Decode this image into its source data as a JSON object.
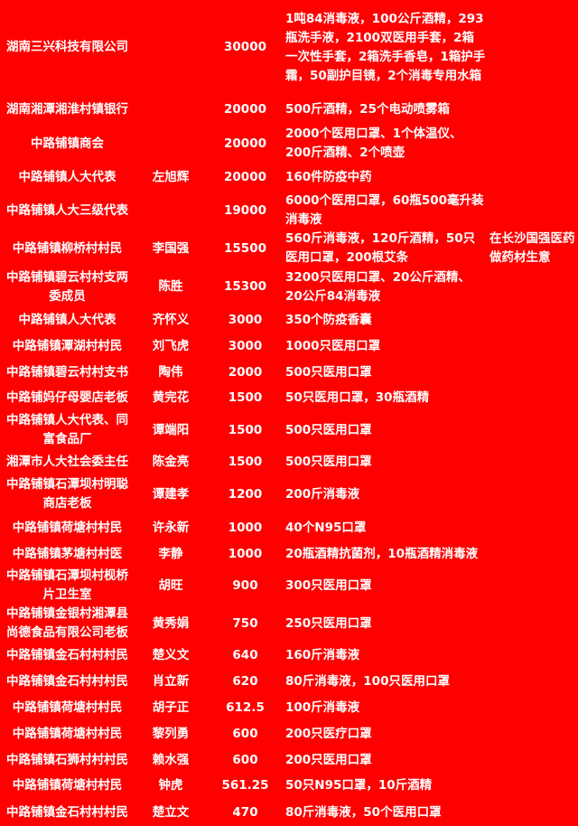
{
  "rows": [
    {
      "donor": "湖南三兴科技有限公司",
      "person": "",
      "amount": "30000",
      "items": "1吨84消毒液，100公斤酒精，293瓶洗手液，2100双医用手套，2箱一次性手套，2箱洗手香皂，1箱护手霜，50副护目镜，2个消毒专用水箱",
      "note": ""
    },
    {
      "donor": "湖南湘潭湘淮村镇银行",
      "person": "",
      "amount": "20000",
      "items": "500斤酒精，25个电动喷雾箱",
      "note": ""
    },
    {
      "donor": "中路铺镇商会",
      "person": "",
      "amount": "20000",
      "items": "2000个医用口罩、1个体温仪、200斤酒精、2个喷壶",
      "note": ""
    },
    {
      "donor": "中路铺镇人大代表",
      "person": "左旭辉",
      "amount": "20000",
      "items": "160件防疫中药",
      "note": ""
    },
    {
      "donor": "中路铺镇人大三级代表",
      "person": "",
      "amount": "19000",
      "items": "6000个医用口罩，60瓶500毫升装消毒液",
      "note": ""
    },
    {
      "donor": "中路铺镇柳桥村村民",
      "person": "李国强",
      "amount": "15500",
      "items": "560斤消毒液，120斤酒精，50只医用口罩，200根艾条",
      "note": "在长沙国强医药做药材生意"
    },
    {
      "donor": "中路铺镇碧云村村支两委成员",
      "person": "陈胜",
      "amount": "15300",
      "items": "3200只医用口罩、20公斤酒精、20公斤84消毒液",
      "note": ""
    },
    {
      "donor": "中路铺镇人大代表",
      "person": "齐怀义",
      "amount": "3000",
      "items": "350个防疫香囊",
      "note": ""
    },
    {
      "donor": "中路铺镇潭湖村村民",
      "person": "刘飞虎",
      "amount": "3000",
      "items": "1000只医用口罩",
      "note": ""
    },
    {
      "donor": "中路铺镇碧云村村支书",
      "person": "陶伟",
      "amount": "2000",
      "items": "500只医用口罩",
      "note": ""
    },
    {
      "donor": "中路铺妈仔母婴店老板",
      "person": "黄完花",
      "amount": "1500",
      "items": "50只医用口罩，30瓶酒精",
      "note": ""
    },
    {
      "donor": "中路铺镇人大代表、同富食品厂",
      "person": "谭端阳",
      "amount": "1500",
      "items": "500只医用口罩",
      "note": ""
    },
    {
      "donor": "湘潭市人大社会委主任",
      "person": "陈金亮",
      "amount": "1500",
      "items": "500只医用口罩",
      "note": ""
    },
    {
      "donor": "中路铺镇石潭坝村明聪商店老板",
      "person": "谭建孝",
      "amount": "1200",
      "items": "200斤消毒液",
      "note": ""
    },
    {
      "donor": "中路铺镇荷塘村村民",
      "person": "许永新",
      "amount": "1000",
      "items": "40个N95口罩",
      "note": ""
    },
    {
      "donor": "中路铺镇茅塘村村医",
      "person": "李静",
      "amount": "1000",
      "items": "20瓶酒精抗菌剂，10瓶酒精消毒液",
      "note": ""
    },
    {
      "donor": "中路铺镇石潭坝村枧桥片卫生室",
      "person": "胡旺",
      "amount": "900",
      "items": "300只医用口罩",
      "note": ""
    },
    {
      "donor": "中路铺镇金银村湘潭县尚德食品有限公司老板",
      "person": "黄秀娟",
      "amount": "750",
      "items": "250只医用口罩",
      "note": ""
    },
    {
      "donor": "中路铺镇金石村村村民",
      "person": "楚义文",
      "amount": "640",
      "items": "160斤消毒液",
      "note": ""
    },
    {
      "donor": "中路铺镇金石村村村民",
      "person": "肖立新",
      "amount": "620",
      "items": "80斤消毒液，100只医用口罩",
      "note": ""
    },
    {
      "donor": "中路铺镇荷塘村村民",
      "person": "胡子正",
      "amount": "612.5",
      "items": "100斤消毒液",
      "note": ""
    },
    {
      "donor": "中路铺镇荷塘村村民",
      "person": "黎列勇",
      "amount": "600",
      "items": "200只医疗口罩",
      "note": ""
    },
    {
      "donor": "中路铺镇石狮村村村民",
      "person": "赖水强",
      "amount": "600",
      "items": "200只医用口罩",
      "note": ""
    },
    {
      "donor": "中路铺镇荷塘村村民",
      "person": "钟虎",
      "amount": "561.25",
      "items": "50只N95口罩，10斤酒精",
      "note": ""
    },
    {
      "donor": "中路铺镇金石村村村民",
      "person": "楚立文",
      "amount": "470",
      "items": "80斤消毒液，50个医用口罩",
      "note": ""
    }
  ],
  "colors": {
    "background": "#fe0000",
    "text": "#ffffff"
  }
}
